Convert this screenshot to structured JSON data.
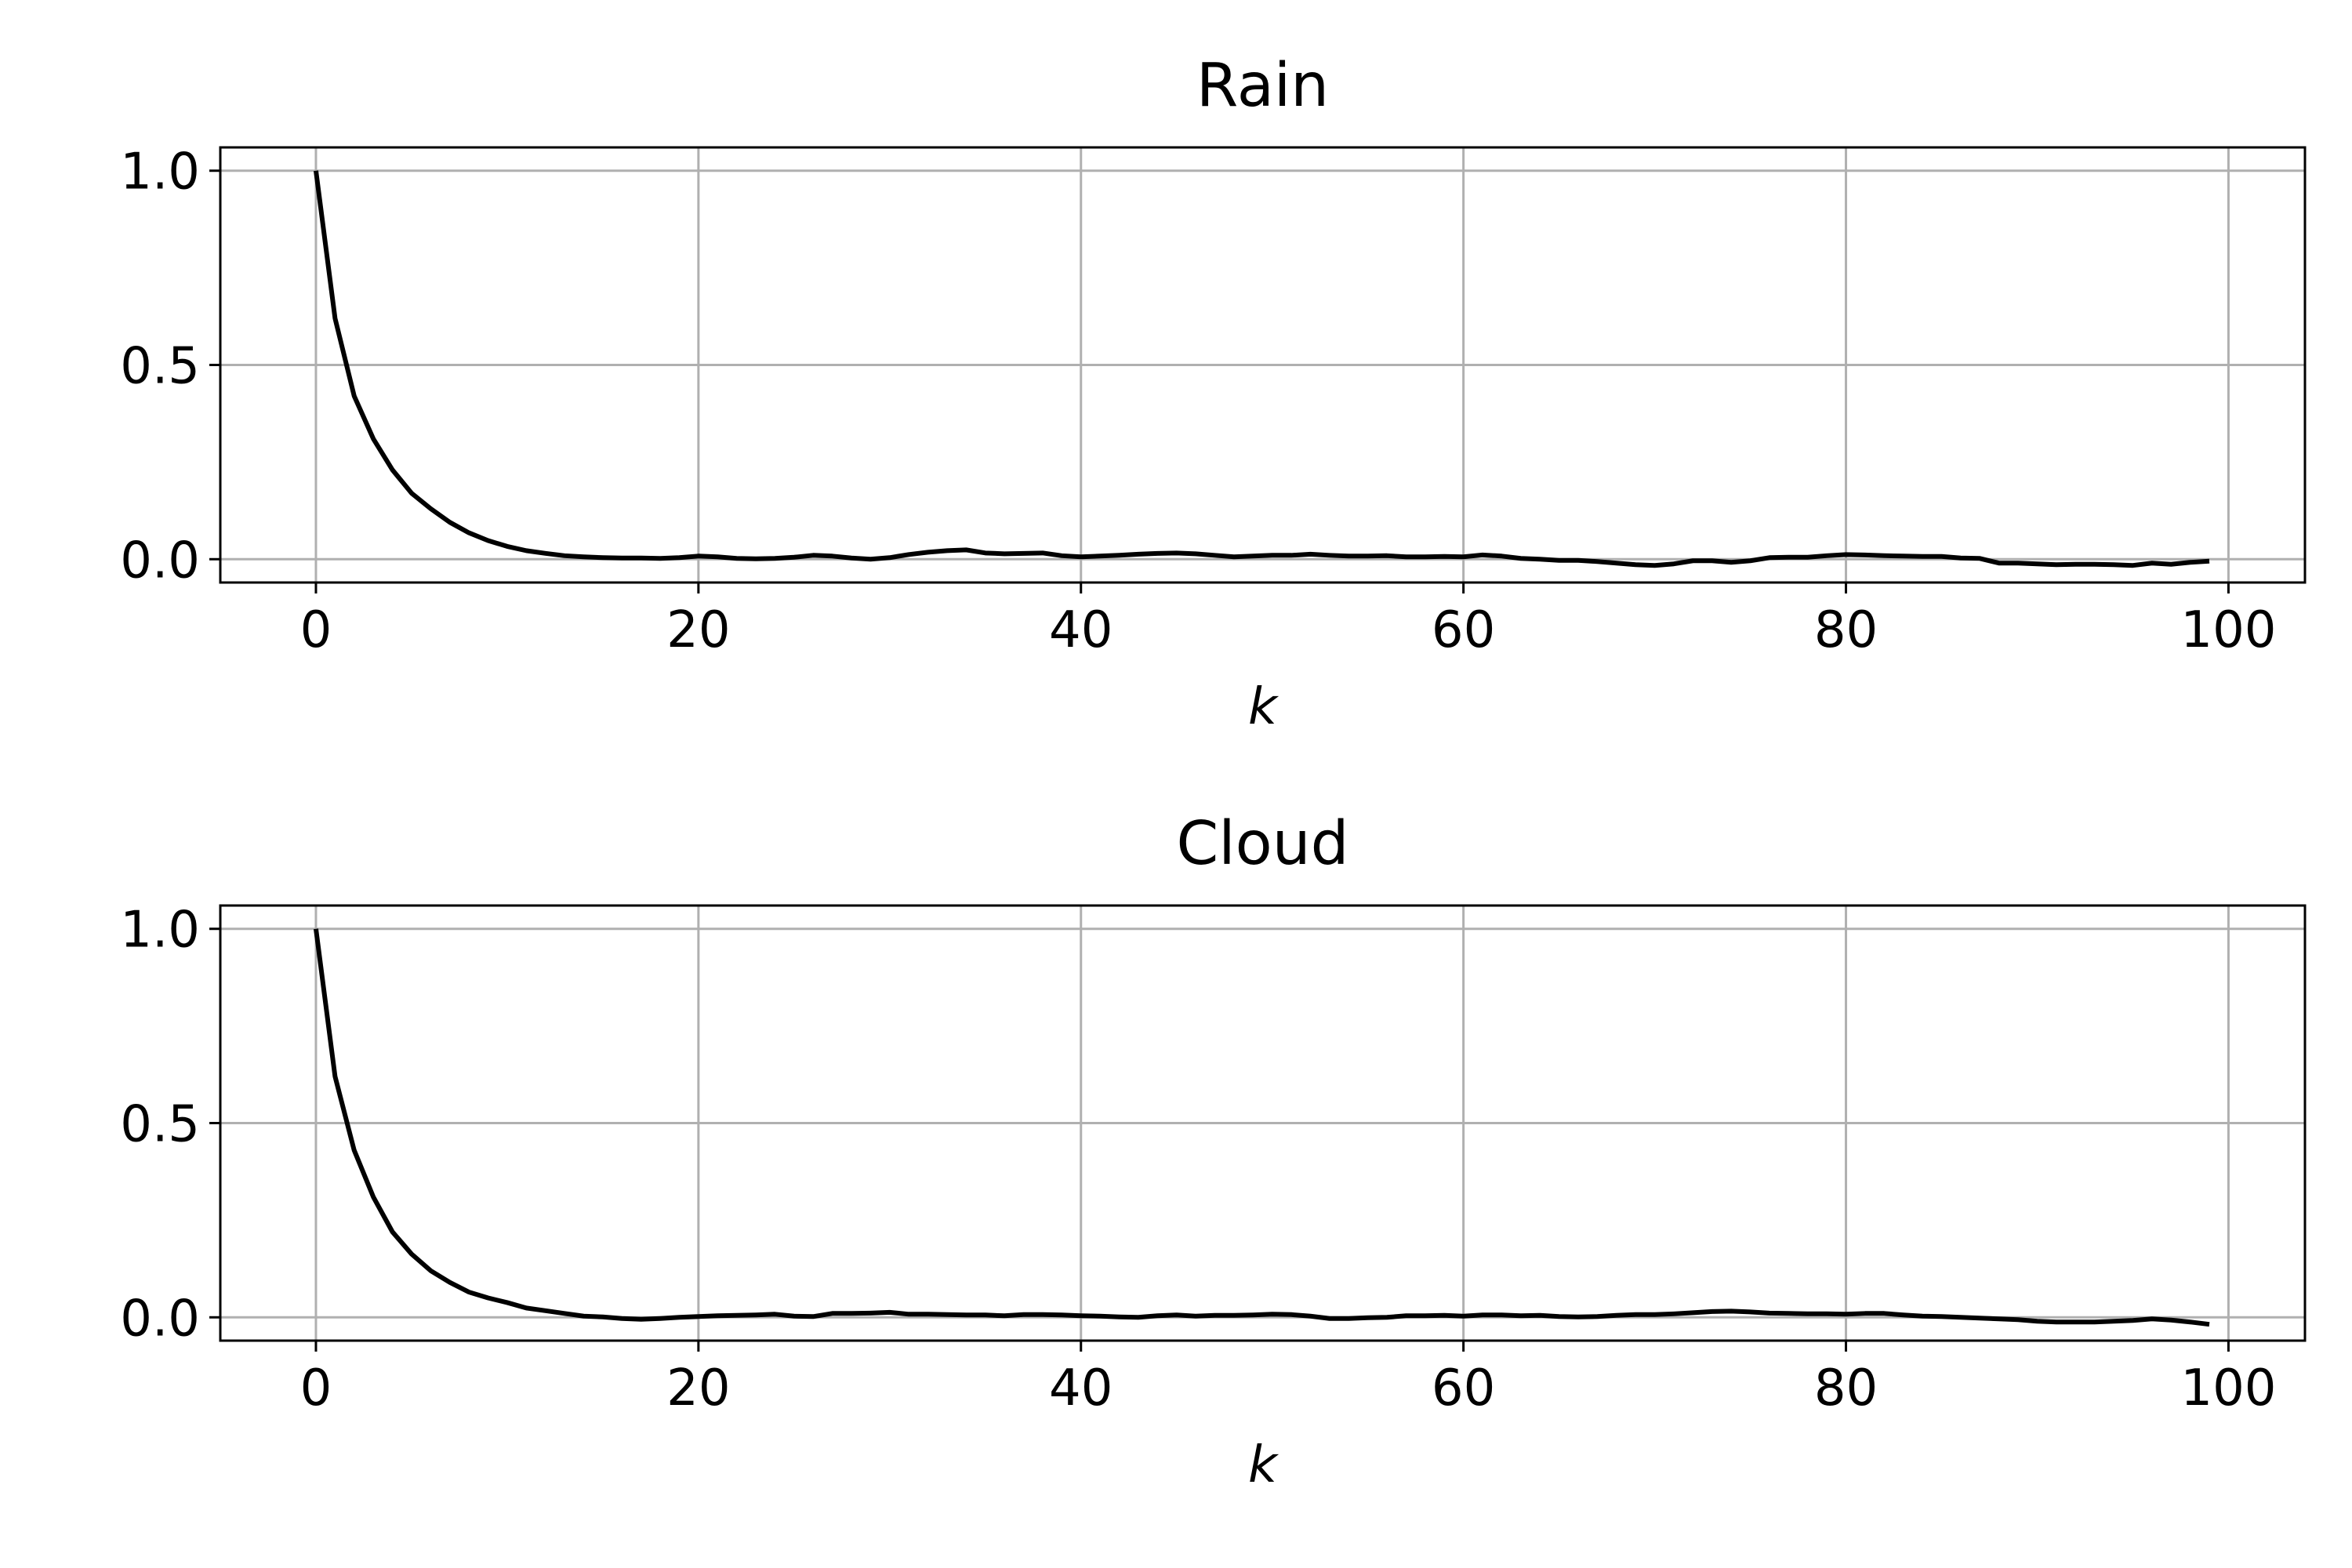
{
  "chart_data": [
    {
      "type": "line",
      "title": "Rain",
      "xlabel": "k",
      "ylabel": "",
      "xlim": [
        -5,
        104
      ],
      "ylim": [
        -0.06,
        1.06
      ],
      "xticks": [
        0,
        20,
        40,
        60,
        80,
        100
      ],
      "xtick_labels": [
        "0",
        "20",
        "40",
        "60",
        "80",
        "100"
      ],
      "yticks": [
        0.0,
        0.5,
        1.0
      ],
      "ytick_labels": [
        "0.0",
        "0.5",
        "1.0"
      ],
      "grid": true,
      "color": "#000000",
      "x": [
        0,
        1,
        2,
        3,
        4,
        5,
        6,
        7,
        8,
        9,
        10,
        11,
        12,
        13,
        14,
        15,
        16,
        17,
        18,
        19,
        20,
        21,
        22,
        23,
        24,
        25,
        26,
        27,
        28,
        29,
        30,
        31,
        32,
        33,
        34,
        35,
        36,
        37,
        38,
        39,
        40,
        41,
        42,
        43,
        44,
        45,
        46,
        47,
        48,
        49,
        50,
        51,
        52,
        53,
        54,
        55,
        56,
        57,
        58,
        59,
        60,
        61,
        62,
        63,
        64,
        65,
        66,
        67,
        68,
        69,
        70,
        71,
        72,
        73,
        74,
        75,
        76,
        77,
        78,
        79,
        80,
        81,
        82,
        83,
        84,
        85,
        86,
        87,
        88,
        89,
        90,
        91,
        92,
        93,
        94,
        95,
        96,
        97,
        98,
        99
      ],
      "y": [
        1.0,
        0.62,
        0.42,
        0.31,
        0.23,
        0.17,
        0.13,
        0.095,
        0.068,
        0.048,
        0.033,
        0.022,
        0.015,
        0.009,
        0.006,
        0.004,
        0.003,
        0.003,
        0.002,
        0.004,
        0.008,
        0.006,
        0.002,
        0.001,
        0.002,
        0.005,
        0.01,
        0.008,
        0.003,
        0.0,
        0.004,
        0.012,
        0.018,
        0.022,
        0.024,
        0.016,
        0.014,
        0.015,
        0.016,
        0.009,
        0.006,
        0.008,
        0.01,
        0.013,
        0.015,
        0.016,
        0.014,
        0.01,
        0.006,
        0.008,
        0.01,
        0.01,
        0.013,
        0.01,
        0.008,
        0.008,
        0.009,
        0.006,
        0.006,
        0.007,
        0.006,
        0.011,
        0.008,
        0.002,
        0.0,
        -0.003,
        -0.003,
        -0.006,
        -0.01,
        -0.014,
        -0.016,
        -0.012,
        -0.004,
        -0.004,
        -0.008,
        -0.004,
        0.004,
        0.005,
        0.005,
        0.009,
        0.012,
        0.011,
        0.009,
        0.008,
        0.007,
        0.007,
        0.003,
        0.002,
        -0.01,
        -0.01,
        -0.012,
        -0.014,
        -0.013,
        -0.013,
        -0.014,
        -0.016,
        -0.01,
        -0.013,
        -0.008,
        -0.005
      ]
    },
    {
      "type": "line",
      "title": "Cloud",
      "xlabel": "k",
      "ylabel": "",
      "xlim": [
        -5,
        104
      ],
      "ylim": [
        -0.06,
        1.06
      ],
      "xticks": [
        0,
        20,
        40,
        60,
        80,
        100
      ],
      "xtick_labels": [
        "0",
        "20",
        "40",
        "60",
        "80",
        "100"
      ],
      "yticks": [
        0.0,
        0.5,
        1.0
      ],
      "ytick_labels": [
        "0.0",
        "0.5",
        "1.0"
      ],
      "grid": true,
      "color": "#000000",
      "x": [
        0,
        1,
        2,
        3,
        4,
        5,
        6,
        7,
        8,
        9,
        10,
        11,
        12,
        13,
        14,
        15,
        16,
        17,
        18,
        19,
        20,
        21,
        22,
        23,
        24,
        25,
        26,
        27,
        28,
        29,
        30,
        31,
        32,
        33,
        34,
        35,
        36,
        37,
        38,
        39,
        40,
        41,
        42,
        43,
        44,
        45,
        46,
        47,
        48,
        49,
        50,
        51,
        52,
        53,
        54,
        55,
        56,
        57,
        58,
        59,
        60,
        61,
        62,
        63,
        64,
        65,
        66,
        67,
        68,
        69,
        70,
        71,
        72,
        73,
        74,
        75,
        76,
        77,
        78,
        79,
        80,
        81,
        82,
        83,
        84,
        85,
        86,
        87,
        88,
        89,
        90,
        91,
        92,
        93,
        94,
        95,
        96,
        97,
        98,
        99
      ],
      "y": [
        1.0,
        0.62,
        0.43,
        0.31,
        0.22,
        0.163,
        0.12,
        0.09,
        0.065,
        0.05,
        0.038,
        0.024,
        0.017,
        0.01,
        0.003,
        0.001,
        -0.003,
        -0.005,
        -0.003,
        0.0,
        0.002,
        0.004,
        0.005,
        0.006,
        0.008,
        0.003,
        0.002,
        0.01,
        0.01,
        0.011,
        0.013,
        0.008,
        0.008,
        0.007,
        0.006,
        0.006,
        0.004,
        0.007,
        0.007,
        0.006,
        0.004,
        0.003,
        0.001,
        0.0,
        0.004,
        0.006,
        0.003,
        0.005,
        0.005,
        0.006,
        0.008,
        0.007,
        0.003,
        -0.003,
        -0.003,
        -0.001,
        0.0,
        0.004,
        0.004,
        0.005,
        0.003,
        0.006,
        0.006,
        0.004,
        0.005,
        0.002,
        0.001,
        0.002,
        0.005,
        0.007,
        0.007,
        0.009,
        0.012,
        0.015,
        0.016,
        0.014,
        0.011,
        0.01,
        0.009,
        0.009,
        0.008,
        0.01,
        0.01,
        0.006,
        0.003,
        0.002,
        0.0,
        -0.002,
        -0.004,
        -0.006,
        -0.01,
        -0.012,
        -0.012,
        -0.012,
        -0.01,
        -0.008,
        -0.004,
        -0.007,
        -0.012,
        -0.018
      ]
    }
  ]
}
